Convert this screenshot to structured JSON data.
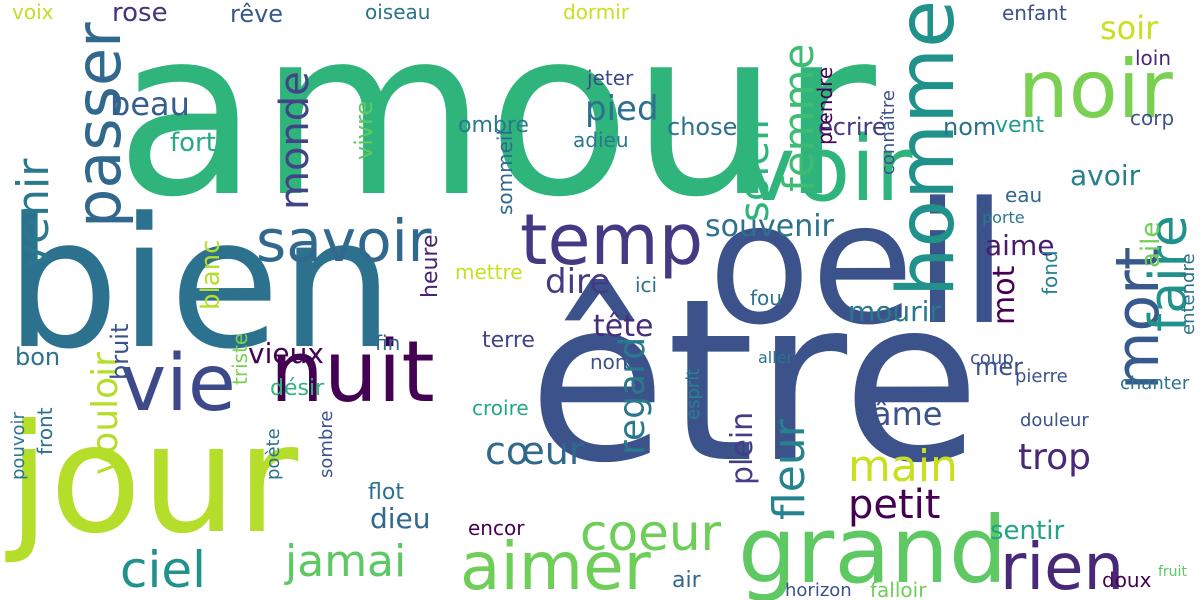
{
  "words": [
    {
      "text": "amour",
      "color": "#2fb47c"
    },
    {
      "text": "être",
      "color": "#3b528b"
    },
    {
      "text": "bien",
      "color": "#2c728e"
    },
    {
      "text": "oeil",
      "color": "#3b528b"
    },
    {
      "text": "jour",
      "color": "#b5de2b"
    },
    {
      "text": "grand",
      "color": "#5ec962"
    },
    {
      "text": "nuit",
      "color": "#440154"
    },
    {
      "text": "vie",
      "color": "#3e4989"
    },
    {
      "text": "voir",
      "color": "#2fb47c"
    },
    {
      "text": "noir",
      "color": "#7ad151"
    },
    {
      "text": "homme",
      "color": "#21918c"
    },
    {
      "text": "passer",
      "color": "#31688e"
    },
    {
      "text": "temp",
      "color": "#443983"
    },
    {
      "text": "savoir",
      "color": "#31688e"
    },
    {
      "text": "aimer",
      "color": "#6ece58"
    },
    {
      "text": "rien",
      "color": "#482878"
    },
    {
      "text": "mort",
      "color": "#38598c"
    },
    {
      "text": "faire",
      "color": "#21918c"
    },
    {
      "text": "coeur",
      "color": "#6ece58"
    },
    {
      "text": "main",
      "color": "#c8e020"
    },
    {
      "text": "fleur",
      "color": "#26828e"
    },
    {
      "text": "jamai",
      "color": "#5ec962"
    },
    {
      "text": "ciel",
      "color": "#21918c"
    },
    {
      "text": "soleil",
      "color": "#2fb47c"
    },
    {
      "text": "femme",
      "color": "#3fbc73"
    },
    {
      "text": "venir",
      "color": "#2a788e"
    },
    {
      "text": "monde",
      "color": "#414487"
    },
    {
      "text": "petit",
      "color": "#440154"
    },
    {
      "text": "cœur",
      "color": "#31688e"
    },
    {
      "text": "vouloir",
      "color": "#b5de2b"
    },
    {
      "text": "regard",
      "color": "#2a788e"
    },
    {
      "text": "trop",
      "color": "#482878"
    },
    {
      "text": "dire",
      "color": "#443983"
    },
    {
      "text": "pied",
      "color": "#2c728e"
    },
    {
      "text": "vieux",
      "color": "#440154"
    },
    {
      "text": "plein",
      "color": "#433e85"
    },
    {
      "text": "âme",
      "color": "#3b528b"
    },
    {
      "text": "beau",
      "color": "#355f8d"
    },
    {
      "text": "souvenir",
      "color": "#2c728e"
    },
    {
      "text": "tête",
      "color": "#472d7b"
    },
    {
      "text": "mourir",
      "color": "#2a788e"
    },
    {
      "text": "aime",
      "color": "#481b6d"
    },
    {
      "text": "avoir",
      "color": "#277f8e"
    },
    {
      "text": "soir",
      "color": "#c8e020"
    },
    {
      "text": "mot",
      "color": "#440154"
    },
    {
      "text": "dieu",
      "color": "#31688e"
    },
    {
      "text": "sentir",
      "color": "#20a386"
    },
    {
      "text": "blanc",
      "color": "#b5de2b"
    },
    {
      "text": "fort",
      "color": "#25ab82"
    },
    {
      "text": "heure",
      "color": "#482475"
    },
    {
      "text": "bruit",
      "color": "#3b528b"
    },
    {
      "text": "rose",
      "color": "#46337e"
    },
    {
      "text": "rêve",
      "color": "#38598c"
    },
    {
      "text": "oiseau",
      "color": "#2c728e"
    },
    {
      "text": "ombre",
      "color": "#2a788e"
    },
    {
      "text": "dormir",
      "color": "#c8e020"
    },
    {
      "text": "chose",
      "color": "#2c728e"
    },
    {
      "text": "écrire",
      "color": "#443983"
    },
    {
      "text": "nom",
      "color": "#2c728e"
    },
    {
      "text": "enfant",
      "color": "#3b528b"
    },
    {
      "text": "voix",
      "color": "#bddf26"
    },
    {
      "text": "vivre",
      "color": "#5ec962"
    },
    {
      "text": "adieu",
      "color": "#2a788e"
    },
    {
      "text": "jeter",
      "color": "#3e4989"
    },
    {
      "text": "sommeil",
      "color": "#31688e"
    },
    {
      "text": "vent",
      "color": "#1f9e89"
    },
    {
      "text": "corp",
      "color": "#3b528b"
    },
    {
      "text": "loin",
      "color": "#482878"
    },
    {
      "text": "prendre",
      "color": "#440154"
    },
    {
      "text": "connaître",
      "color": "#3b528b"
    },
    {
      "text": "eau",
      "color": "#31688e"
    },
    {
      "text": "terre",
      "color": "#414487"
    },
    {
      "text": "désir",
      "color": "#2fb47c"
    },
    {
      "text": "triste",
      "color": "#7ad151"
    },
    {
      "text": "fin",
      "color": "#31688e"
    },
    {
      "text": "mettre",
      "color": "#c8e020"
    },
    {
      "text": "ici",
      "color": "#2c728e"
    },
    {
      "text": "fou",
      "color": "#2c728e"
    },
    {
      "text": "bon",
      "color": "#2c728e"
    },
    {
      "text": "non",
      "color": "#3b528b"
    },
    {
      "text": "mer",
      "color": "#3b528b"
    },
    {
      "text": "encor",
      "color": "#440154"
    },
    {
      "text": "flot",
      "color": "#2d708e"
    },
    {
      "text": "croire",
      "color": "#22a884"
    },
    {
      "text": "fond",
      "color": "#25848e"
    },
    {
      "text": "aile",
      "color": "#6ece58"
    },
    {
      "text": "entendre",
      "color": "#2c728e"
    },
    {
      "text": "chanter",
      "color": "#2c728e"
    },
    {
      "text": "douleur",
      "color": "#3b528b"
    },
    {
      "text": "coup",
      "color": "#3b528b"
    },
    {
      "text": "pierre",
      "color": "#3b528b"
    },
    {
      "text": "air",
      "color": "#31688e"
    },
    {
      "text": "falloir",
      "color": "#6ece58"
    },
    {
      "text": "horizon",
      "color": "#3b528b"
    },
    {
      "text": "doux",
      "color": "#440154"
    },
    {
      "text": "front",
      "color": "#2c728e"
    },
    {
      "text": "pouvoir",
      "color": "#2a788e"
    },
    {
      "text": "poète",
      "color": "#2c728e"
    },
    {
      "text": "sombre",
      "color": "#3b528b"
    },
    {
      "text": "esprit",
      "color": "#26828e"
    },
    {
      "text": "aller",
      "color": "#2c728e"
    },
    {
      "text": "porte",
      "color": "#2a788e"
    },
    {
      "text": "fruit",
      "color": "#5ec962"
    }
  ]
}
